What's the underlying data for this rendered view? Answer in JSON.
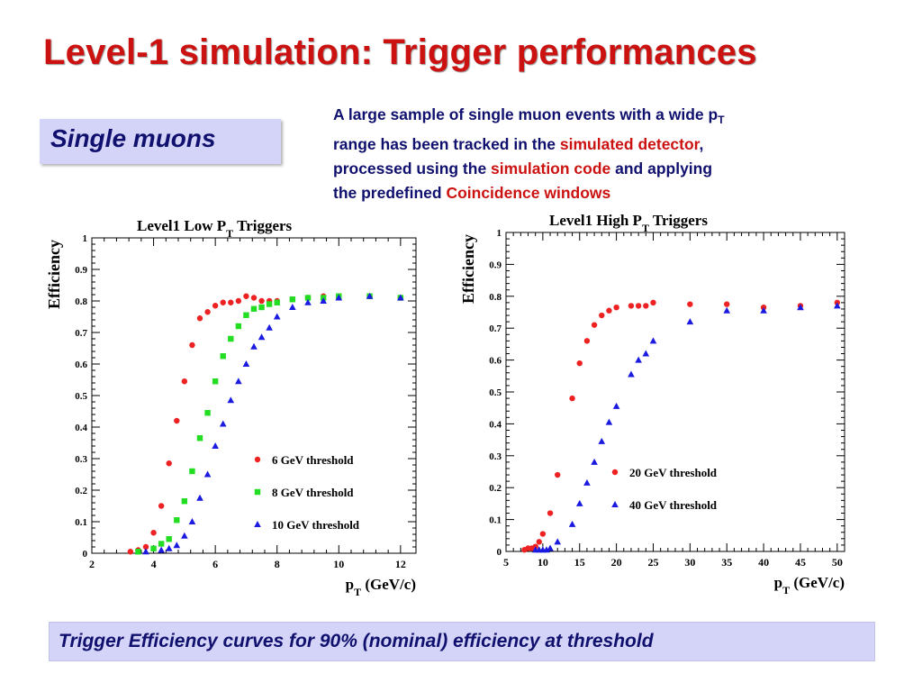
{
  "slide": {
    "title": "Level-1 simulation: Trigger performances",
    "tag": "Single muons",
    "intro": {
      "p1": "A large sample of single muon events with a wide p",
      "p1_sub": "T",
      "p2": " range has been tracked in the ",
      "h1": "simulated detector",
      "p3": ",",
      "p4": "processed using the ",
      "h2": "simulation code",
      "p5": " and applying",
      "p6": "the predefined ",
      "h3": "Coincidence windows"
    },
    "caption": "Trigger Efficiency curves for 90% (nominal) efficiency at threshold"
  },
  "colors": {
    "title": "#cc1111",
    "text": "#10106e",
    "highlight": "#cc1111",
    "box": "#d4d4f8",
    "red": "#ee2222",
    "green": "#22dd22",
    "blue": "#1a1ae0"
  },
  "chart_data": [
    {
      "type": "scatter",
      "title_main": "Level1  Low P",
      "title_sub": "T",
      "title_end": " Triggers",
      "xlabel_main": "p",
      "xlabel_sub": "T",
      "xlabel_end": " (GeV/c)",
      "ylabel": "Efficiency",
      "xlim": [
        2,
        12.5
      ],
      "ylim": [
        0,
        1
      ],
      "xticks": [
        2,
        4,
        6,
        8,
        10,
        12
      ],
      "yticks": [
        0,
        0.1,
        0.2,
        0.3,
        0.4,
        0.5,
        0.6,
        0.7,
        0.8,
        0.9,
        1
      ],
      "ytick_labels": [
        "0",
        "0.1",
        "0.2",
        "0.3",
        "0.4",
        "0.5",
        "0.6",
        "0.7",
        "0.8",
        "0.9",
        "1"
      ],
      "legend_position": "bottom-right",
      "series": [
        {
          "name": "6 GeV threshold",
          "marker": "circle",
          "color": "#ee2222",
          "x": [
            3.25,
            3.5,
            3.75,
            4.0,
            4.25,
            4.5,
            4.75,
            5.0,
            5.25,
            5.5,
            5.75,
            6.0,
            6.25,
            6.5,
            6.75,
            7.0,
            7.25,
            7.5,
            7.75,
            8.0,
            8.5,
            9.0,
            9.5,
            10.0,
            11.0,
            12.0
          ],
          "y": [
            0.005,
            0.01,
            0.02,
            0.065,
            0.15,
            0.285,
            0.42,
            0.545,
            0.66,
            0.745,
            0.765,
            0.785,
            0.795,
            0.795,
            0.8,
            0.815,
            0.81,
            0.8,
            0.8,
            0.8,
            0.805,
            0.81,
            0.815,
            0.815,
            0.815,
            0.81
          ]
        },
        {
          "name": "8 GeV threshold",
          "marker": "square",
          "color": "#22dd22",
          "x": [
            3.5,
            4.0,
            4.25,
            4.5,
            4.75,
            5.0,
            5.25,
            5.5,
            5.75,
            6.0,
            6.25,
            6.5,
            6.75,
            7.0,
            7.25,
            7.5,
            7.75,
            8.0,
            8.5,
            9.0,
            9.5,
            10.0,
            11.0,
            12.0
          ],
          "y": [
            0.005,
            0.015,
            0.03,
            0.045,
            0.105,
            0.165,
            0.26,
            0.365,
            0.445,
            0.545,
            0.625,
            0.68,
            0.72,
            0.755,
            0.775,
            0.78,
            0.79,
            0.795,
            0.805,
            0.81,
            0.81,
            0.815,
            0.815,
            0.81
          ]
        },
        {
          "name": "10 GeV threshold",
          "marker": "triangle",
          "color": "#1a1ae0",
          "x": [
            3.75,
            4.25,
            4.5,
            4.75,
            5.0,
            5.25,
            5.5,
            5.75,
            6.0,
            6.25,
            6.5,
            6.75,
            7.0,
            7.25,
            7.5,
            7.75,
            8.0,
            8.5,
            9.0,
            9.5,
            10.0,
            11.0,
            12.0
          ],
          "y": [
            0.005,
            0.01,
            0.015,
            0.025,
            0.055,
            0.1,
            0.175,
            0.25,
            0.34,
            0.41,
            0.485,
            0.545,
            0.6,
            0.655,
            0.685,
            0.715,
            0.75,
            0.78,
            0.795,
            0.8,
            0.81,
            0.815,
            0.81
          ]
        }
      ]
    },
    {
      "type": "scatter",
      "title_main": "Level1  High P",
      "title_sub": "T",
      "title_end": " Triggers",
      "xlabel_main": "p",
      "xlabel_sub": "T",
      "xlabel_end": " (GeV/c)",
      "ylabel": "Efficiency",
      "xlim": [
        5,
        51
      ],
      "ylim": [
        0,
        1
      ],
      "xticks": [
        5,
        10,
        15,
        20,
        25,
        30,
        35,
        40,
        45,
        50
      ],
      "yticks": [
        0,
        0.1,
        0.2,
        0.3,
        0.4,
        0.5,
        0.6,
        0.7,
        0.8,
        0.9,
        1
      ],
      "ytick_labels": [
        "0",
        "0.1",
        "0.2",
        "0.3",
        "0.4",
        "0.5",
        "0.6",
        "0.7",
        "0.8",
        "0.9",
        "1"
      ],
      "legend_position": "bottom-right",
      "series": [
        {
          "name": "20 GeV threshold",
          "marker": "circle",
          "color": "#ee2222",
          "x": [
            7.5,
            8,
            8.5,
            9,
            9.5,
            10,
            11,
            12,
            14,
            15,
            16,
            17,
            18,
            19,
            20,
            22,
            23,
            24,
            25,
            30,
            35,
            40,
            45,
            50
          ],
          "y": [
            0.005,
            0.01,
            0.01,
            0.015,
            0.03,
            0.055,
            0.12,
            0.24,
            0.48,
            0.59,
            0.66,
            0.71,
            0.74,
            0.755,
            0.765,
            0.77,
            0.77,
            0.77,
            0.78,
            0.775,
            0.775,
            0.765,
            0.77,
            0.78
          ]
        },
        {
          "name": "40 GeV threshold",
          "marker": "triangle",
          "color": "#1a1ae0",
          "x": [
            9,
            9.5,
            10,
            10.5,
            11,
            12,
            14,
            15,
            16,
            17,
            18,
            19,
            20,
            22,
            23,
            24,
            25,
            30,
            35,
            40,
            45,
            50
          ],
          "y": [
            0.005,
            0.005,
            0.005,
            0.005,
            0.01,
            0.03,
            0.085,
            0.15,
            0.215,
            0.28,
            0.345,
            0.405,
            0.455,
            0.555,
            0.6,
            0.62,
            0.66,
            0.72,
            0.755,
            0.755,
            0.765,
            0.77
          ]
        }
      ]
    }
  ]
}
